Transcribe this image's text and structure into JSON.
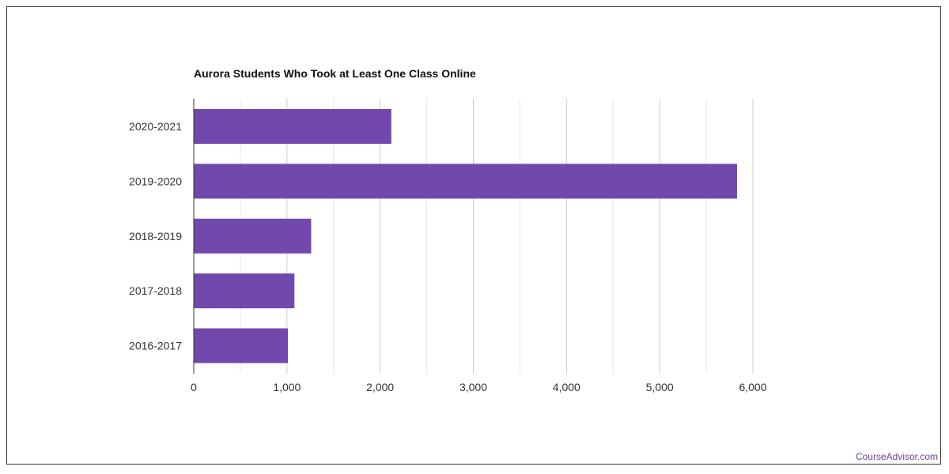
{
  "brand": {
    "watermark": "CourseAdvisor.com",
    "accent_color": "#7149ac"
  },
  "chart_data": {
    "type": "bar",
    "orientation": "horizontal",
    "title": "Aurora Students Who Took at Least One Class Online",
    "xlabel": "",
    "ylabel": "",
    "categories": [
      "2020-2021",
      "2019-2020",
      "2018-2019",
      "2017-2018",
      "2016-2017"
    ],
    "values": [
      2120,
      5830,
      1260,
      1080,
      1010
    ],
    "xlim": [
      0,
      6000
    ],
    "x_ticks": [
      0,
      1000,
      2000,
      3000,
      4000,
      5000,
      6000
    ],
    "x_tick_labels": [
      "0",
      "1,000",
      "2,000",
      "3,000",
      "4,000",
      "5,000",
      "6,000"
    ],
    "grid": true,
    "legend": "none",
    "bar_color": "#7149ac"
  }
}
